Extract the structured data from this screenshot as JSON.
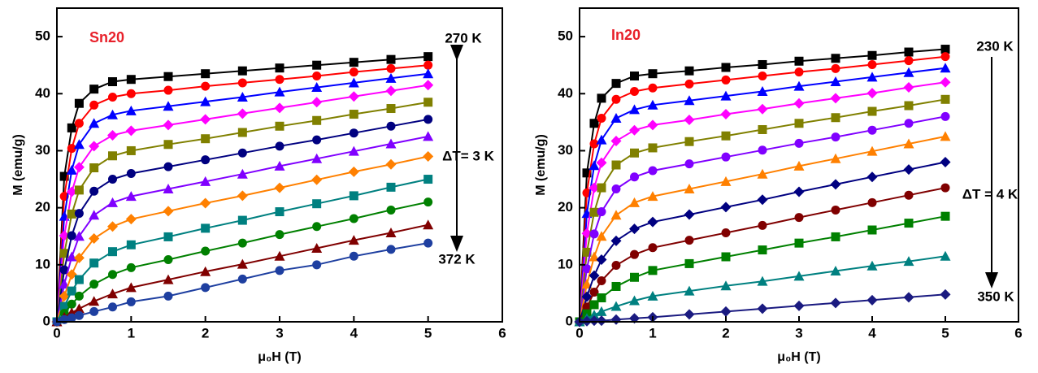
{
  "chart_data": [
    {
      "type": "line",
      "xlabel": "μ₀H (T)",
      "ylabel": "M (emu/g)",
      "xlim": [
        0,
        6
      ],
      "xticks": [
        0,
        1,
        2,
        3,
        4,
        5,
        6
      ],
      "ylim": [
        0,
        55
      ],
      "yticks": [
        0,
        10,
        20,
        30,
        40,
        50
      ],
      "annotations": [
        {
          "text": "Sn20",
          "color": "#e8202a"
        },
        {
          "text": "270 K"
        },
        {
          "text": "ΔT= 3 K"
        },
        {
          "text": "372 K"
        }
      ],
      "x": [
        0,
        0.1,
        0.2,
        0.3,
        0.5,
        0.75,
        1,
        1.5,
        2,
        2.5,
        3,
        3.5,
        4,
        4.5,
        5
      ],
      "series": [
        {
          "color": "#000000",
          "marker": "square",
          "values": [
            0,
            25.5,
            34,
            38.3,
            40.8,
            42.1,
            42.5,
            43,
            43.5,
            44,
            44.5,
            45,
            45.5,
            46,
            46.5
          ]
        },
        {
          "color": "#ff0000",
          "marker": "circle",
          "values": [
            0,
            22,
            30.4,
            34.8,
            38,
            39.4,
            40,
            40.6,
            41.3,
            41.9,
            42.5,
            43.1,
            43.8,
            44.4,
            45
          ]
        },
        {
          "color": "#0000ff",
          "marker": "triangle",
          "values": [
            0,
            18.5,
            26.6,
            31.1,
            34.8,
            36.3,
            37,
            37.8,
            38.6,
            39.4,
            40.3,
            41.1,
            41.9,
            42.7,
            43.5
          ]
        },
        {
          "color": "#ff00ff",
          "marker": "diamond",
          "values": [
            0,
            15.1,
            22.8,
            27.1,
            30.8,
            32.7,
            33.5,
            34.5,
            35.5,
            36.5,
            37.5,
            38.5,
            39.5,
            40.5,
            41.5
          ]
        },
        {
          "color": "#808000",
          "marker": "square",
          "values": [
            0,
            12,
            18.9,
            23.1,
            27,
            29.1,
            30,
            31.1,
            32.1,
            33.2,
            34.3,
            35.3,
            36.4,
            37.4,
            38.5
          ]
        },
        {
          "color": "#000080",
          "marker": "circle",
          "values": [
            0,
            9.1,
            15.1,
            19,
            22.9,
            25,
            26,
            27.2,
            28.4,
            29.6,
            30.8,
            31.9,
            33.1,
            34.3,
            35.5
          ]
        },
        {
          "color": "#8000ff",
          "marker": "triangle",
          "values": [
            0,
            6.6,
            11.4,
            15,
            18.7,
            20.9,
            22,
            23.3,
            24.6,
            25.9,
            27.3,
            28.6,
            29.9,
            31.2,
            32.5
          ]
        },
        {
          "color": "#ff8000",
          "marker": "diamond",
          "values": [
            0,
            4.5,
            8.3,
            11.2,
            14.6,
            16.7,
            18,
            19.4,
            20.8,
            22.1,
            23.5,
            24.9,
            26.3,
            27.6,
            29
          ]
        },
        {
          "color": "#008080",
          "marker": "square",
          "values": [
            0,
            2.7,
            5.4,
            7.4,
            10.3,
            12.3,
            13.5,
            14.9,
            16.4,
            17.8,
            19.3,
            20.7,
            22.1,
            23.6,
            25
          ]
        },
        {
          "color": "#008000",
          "marker": "circle",
          "values": [
            0,
            1.5,
            3.1,
            4.5,
            6.6,
            8.3,
            9.5,
            10.9,
            12.4,
            13.8,
            15.3,
            16.7,
            18.1,
            19.6,
            21
          ]
        },
        {
          "color": "#800000",
          "marker": "triangle",
          "values": [
            0,
            0.8,
            1.6,
            2.3,
            3.6,
            4.9,
            6,
            7.4,
            8.8,
            10.1,
            11.5,
            12.9,
            14.3,
            15.6,
            17
          ]
        },
        {
          "color": "#1e3fa0",
          "marker": "circle",
          "values": [
            0,
            0.4,
            0.7,
            1.1,
            1.8,
            2.6,
            3.5,
            4.5,
            6,
            7.5,
            9,
            10,
            11.5,
            12.7,
            13.8
          ]
        }
      ]
    },
    {
      "type": "line",
      "xlabel": "μ₀H (T)",
      "ylabel": "M (emu/g)",
      "xlim": [
        0,
        6
      ],
      "xticks": [
        0,
        1,
        2,
        3,
        4,
        5,
        6
      ],
      "ylim": [
        0,
        55
      ],
      "yticks": [
        0,
        10,
        20,
        30,
        40,
        50
      ],
      "annotations": [
        {
          "text": "In20",
          "color": "#e8202a"
        },
        {
          "text": "230 K"
        },
        {
          "text": "ΔT = 4 K"
        },
        {
          "text": "350 K"
        }
      ],
      "x": [
        0,
        0.1,
        0.2,
        0.3,
        0.5,
        0.75,
        1,
        1.5,
        2,
        2.5,
        3,
        3.5,
        4,
        4.5,
        5
      ],
      "series": [
        {
          "color": "#000000",
          "marker": "square",
          "values": [
            0,
            26.1,
            34.8,
            39.2,
            41.8,
            43.1,
            43.5,
            44,
            44.6,
            45.1,
            45.7,
            46.2,
            46.7,
            47.3,
            47.8
          ]
        },
        {
          "color": "#ff0000",
          "marker": "circle",
          "values": [
            0,
            22.6,
            31.2,
            35.7,
            39,
            40.4,
            41,
            41.7,
            42.4,
            43.1,
            43.8,
            44.4,
            45.1,
            45.8,
            46.5
          ]
        },
        {
          "color": "#0000ff",
          "marker": "triangle",
          "values": [
            0,
            19,
            27.4,
            31.9,
            35.7,
            37.2,
            38,
            38.8,
            39.6,
            40.4,
            41.3,
            42.1,
            42.9,
            43.7,
            44.5
          ]
        },
        {
          "color": "#ff00ff",
          "marker": "diamond",
          "values": [
            0,
            15.5,
            23.5,
            27.9,
            31.7,
            33.6,
            34.5,
            35.4,
            36.4,
            37.3,
            38.3,
            39.2,
            40.1,
            41.1,
            42
          ]
        },
        {
          "color": "#808000",
          "marker": "square",
          "values": [
            0,
            12.2,
            19.2,
            23.5,
            27.5,
            29.6,
            30.5,
            31.6,
            32.6,
            33.7,
            34.8,
            35.8,
            36.9,
            37.9,
            39
          ]
        },
        {
          "color": "#8000ff",
          "marker": "circle",
          "values": [
            0,
            9.3,
            15.4,
            19.3,
            23.3,
            25.4,
            26.5,
            27.7,
            28.9,
            30.1,
            31.3,
            32.4,
            33.6,
            34.8,
            36
          ]
        },
        {
          "color": "#ff8000",
          "marker": "triangle",
          "values": [
            0,
            6.6,
            11.4,
            15,
            18.7,
            20.9,
            22,
            23.3,
            24.6,
            25.9,
            27.3,
            28.6,
            29.9,
            31.2,
            32.5
          ]
        },
        {
          "color": "#000080",
          "marker": "diamond",
          "values": [
            0,
            4.4,
            8.1,
            10.9,
            14.2,
            16.3,
            17.5,
            18.8,
            20.1,
            21.4,
            22.8,
            24.1,
            25.4,
            26.7,
            28
          ]
        },
        {
          "color": "#800000",
          "marker": "circle",
          "values": [
            0,
            2.6,
            5.2,
            7.2,
            9.9,
            11.8,
            13,
            14.3,
            15.6,
            16.9,
            18.3,
            19.6,
            20.9,
            22.2,
            23.5
          ]
        },
        {
          "color": "#008000",
          "marker": "square",
          "values": [
            0,
            1.4,
            3,
            4.2,
            6.2,
            7.8,
            9,
            10.2,
            11.4,
            12.6,
            13.8,
            14.9,
            16.1,
            17.3,
            18.5
          ]
        },
        {
          "color": "#008080",
          "marker": "triangle",
          "values": [
            0,
            0.6,
            1.2,
            1.8,
            2.7,
            3.7,
            4.5,
            5.4,
            6.3,
            7.1,
            8,
            8.9,
            9.8,
            10.6,
            11.5
          ]
        },
        {
          "color": "#1a1a80",
          "marker": "diamond",
          "values": [
            0,
            0.1,
            0.2,
            0.2,
            0.4,
            0.6,
            0.8,
            1.3,
            1.8,
            2.3,
            2.8,
            3.3,
            3.8,
            4.3,
            4.8
          ]
        }
      ]
    }
  ]
}
